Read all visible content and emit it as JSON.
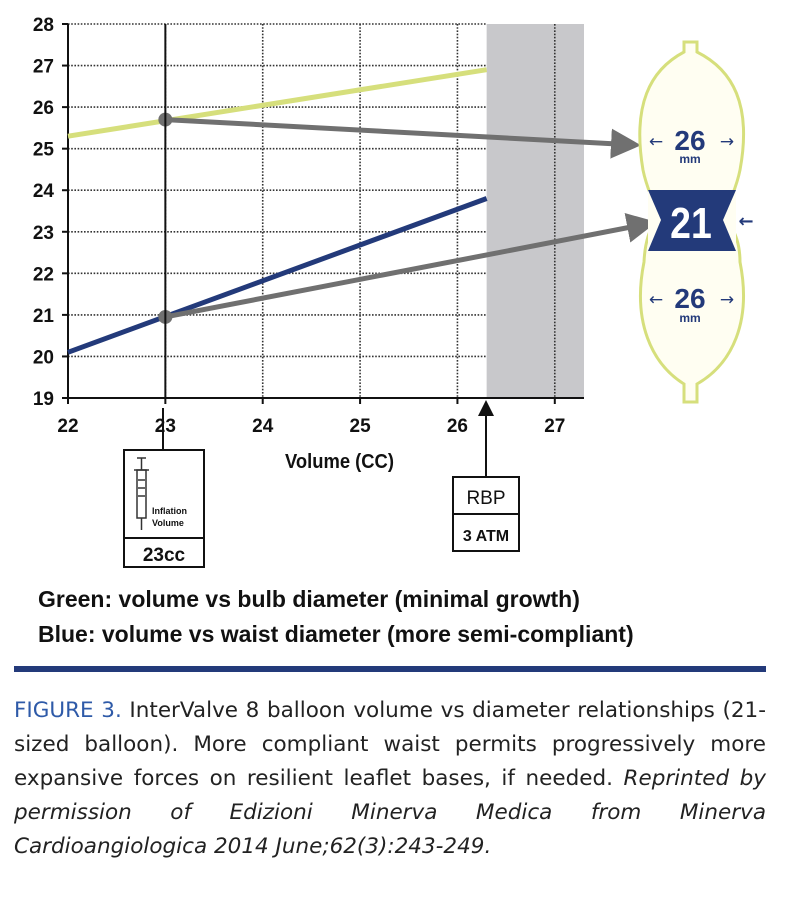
{
  "chart_data": {
    "type": "line",
    "xlabel": "Volume (CC)",
    "ylabel": "",
    "xlim": [
      22,
      27.3
    ],
    "ylim": [
      19,
      28
    ],
    "x_ticks": [
      "22",
      "23",
      "24",
      "25",
      "26",
      "27"
    ],
    "y_ticks": [
      "19",
      "20",
      "21",
      "22",
      "23",
      "24",
      "25",
      "26",
      "27",
      "28"
    ],
    "grid": true,
    "series": [
      {
        "name": "Green: volume vs bulb diameter",
        "color": "#d6df7c",
        "x": [
          22,
          26.3
        ],
        "y": [
          25.3,
          26.9
        ]
      },
      {
        "name": "Blue: volume vs waist diameter",
        "color": "#233a7a",
        "x": [
          22,
          26.3
        ],
        "y": [
          20.1,
          23.8
        ]
      }
    ],
    "shaded_region": {
      "x_from": 26.3,
      "x_to": 27.3,
      "color": "#c8c8cb"
    },
    "marked_points": [
      {
        "x": 23,
        "y": 25.7,
        "arrow_to": "bulb"
      },
      {
        "x": 23,
        "y": 20.95,
        "arrow_to": "waist"
      }
    ],
    "inflation_box": {
      "label_line1": "Inflation",
      "label_line2": "Volume",
      "value": "23cc"
    },
    "rbp_box": {
      "label": "RBP",
      "value": "3 ATM"
    },
    "balloon": {
      "top_diameter": "26",
      "top_unit": "mm",
      "waist_diameter": "21",
      "bottom_diameter": "26",
      "bottom_unit": "mm",
      "left_arrow": "←",
      "right_arrow": "→"
    }
  },
  "legend": {
    "green": "Green: volume vs bulb diameter (minimal growth)",
    "blue": "Blue: volume vs waist diameter (more semi-compliant)"
  },
  "caption": {
    "figure_label": "FIGURE 3.",
    "text": "InterValve 8 balloon volume vs diameter relationships (21-sized balloon). More compliant waist permits progressively more expansive forces on resilient leaflet bases, if needed.",
    "credit": "Reprinted by permission of Edizioni Minerva Medica from Minerva Cardioangiologica 2014 June;62(3):243-249."
  },
  "colors": {
    "accent": "#2e5aa8",
    "divider": "#233a7a",
    "green_line": "#d6df7c",
    "blue_line": "#233a7a",
    "arrow_gray": "#707070"
  }
}
